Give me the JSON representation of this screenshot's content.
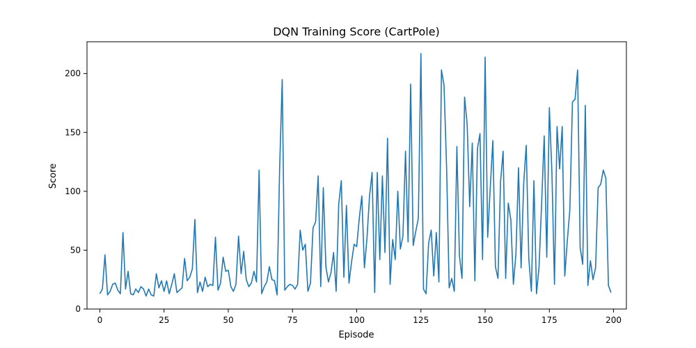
{
  "chart_data": {
    "type": "line",
    "title": "DQN Training Score (CartPole)",
    "xlabel": "Episode",
    "ylabel": "Score",
    "xlim": [
      -5,
      205
    ],
    "ylim": [
      0,
      227
    ],
    "xticks": [
      0,
      25,
      50,
      75,
      100,
      125,
      150,
      175,
      200
    ],
    "yticks": [
      0,
      50,
      100,
      150,
      200
    ],
    "grid": false,
    "line_color": "#1f77b4",
    "series": [
      {
        "values": [
          13,
          17,
          46,
          12,
          15,
          21,
          22,
          16,
          13,
          65,
          17,
          32,
          13,
          12,
          17,
          14,
          19,
          17,
          11,
          17,
          12,
          11,
          30,
          18,
          24,
          15,
          24,
          13,
          21,
          30,
          14,
          16,
          18,
          43,
          24,
          27,
          34,
          76,
          14,
          23,
          15,
          27,
          19,
          21,
          20,
          61,
          16,
          22,
          44,
          32,
          33,
          19,
          15,
          21,
          62,
          30,
          49,
          25,
          19,
          22,
          32,
          23,
          118,
          13,
          19,
          23,
          36,
          25,
          24,
          12,
          120,
          195,
          16,
          19,
          21,
          20,
          17,
          21,
          67,
          50,
          55,
          15,
          22,
          69,
          74,
          113,
          19,
          103,
          36,
          23,
          31,
          48,
          15,
          89,
          109,
          27,
          88,
          22,
          40,
          55,
          53,
          77,
          96,
          35,
          60,
          96,
          116,
          14,
          116,
          42,
          113,
          48,
          145,
          21,
          59,
          42,
          100,
          51,
          62,
          134,
          57,
          191,
          54,
          66,
          77,
          217,
          17,
          13,
          56,
          67,
          28,
          65,
          23,
          203,
          190,
          120,
          18,
          26,
          15,
          138,
          45,
          26,
          180,
          157,
          87,
          141,
          24,
          136,
          149,
          42,
          214,
          61,
          103,
          143,
          36,
          26,
          108,
          134,
          26,
          90,
          76,
          21,
          47,
          120,
          35,
          106,
          139,
          43,
          15,
          109,
          13,
          36,
          90,
          147,
          44,
          171,
          116,
          21,
          155,
          119,
          155,
          28,
          58,
          85,
          176,
          178,
          203,
          52,
          38,
          173,
          20,
          41,
          25,
          35,
          103,
          106,
          118,
          111,
          20,
          14
        ]
      }
    ]
  }
}
